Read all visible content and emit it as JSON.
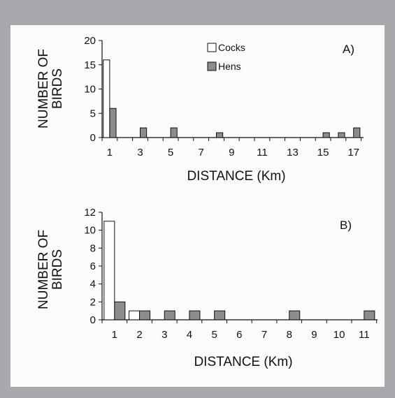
{
  "chart_data": [
    {
      "type": "bar",
      "panel_label": "A)",
      "xlabel": "DISTANCE (Km)",
      "ylabel": [
        "NUMBER OF",
        "BIRDS"
      ],
      "ylim": [
        0,
        20
      ],
      "yticks": [
        "0",
        "5",
        "10",
        "15",
        "20"
      ],
      "xticks": [
        "1",
        "3",
        "5",
        "7",
        "9",
        "11",
        "13",
        "15",
        "17"
      ],
      "xlim": [
        0.5,
        17.5
      ],
      "legend": {
        "position": "top-center",
        "entries": [
          "Cocks",
          "Hens"
        ]
      },
      "series": [
        {
          "name": "Cocks",
          "color": "#ffffff",
          "points": [
            {
              "x": 1,
              "y": 16
            }
          ]
        },
        {
          "name": "Hens",
          "color": "#8c8c8c",
          "points": [
            {
              "x": 1,
              "y": 6
            },
            {
              "x": 3,
              "y": 2
            },
            {
              "x": 5,
              "y": 2
            },
            {
              "x": 8,
              "y": 1
            },
            {
              "x": 15,
              "y": 1
            },
            {
              "x": 16,
              "y": 1
            },
            {
              "x": 17,
              "y": 2
            }
          ]
        }
      ]
    },
    {
      "type": "bar",
      "panel_label": "B)",
      "xlabel": "DISTANCE (Km)",
      "ylabel": [
        "NUMBER OF",
        "BIRDS"
      ],
      "ylim": [
        0,
        12
      ],
      "yticks": [
        "0",
        "2",
        "4",
        "6",
        "8",
        "10",
        "12"
      ],
      "xticks": [
        "1",
        "2",
        "3",
        "4",
        "5",
        "6",
        "7",
        "8",
        "9",
        "10",
        "11"
      ],
      "xlim": [
        0.5,
        11.5
      ],
      "series": [
        {
          "name": "Cocks",
          "color": "#ffffff",
          "points": [
            {
              "x": 1,
              "y": 11
            },
            {
              "x": 2,
              "y": 1
            }
          ]
        },
        {
          "name": "Hens",
          "color": "#8c8c8c",
          "points": [
            {
              "x": 1,
              "y": 2
            },
            {
              "x": 2,
              "y": 1
            },
            {
              "x": 3,
              "y": 1
            },
            {
              "x": 4,
              "y": 1
            },
            {
              "x": 5,
              "y": 1
            },
            {
              "x": 8,
              "y": 1
            },
            {
              "x": 11,
              "y": 1
            }
          ]
        }
      ]
    }
  ]
}
